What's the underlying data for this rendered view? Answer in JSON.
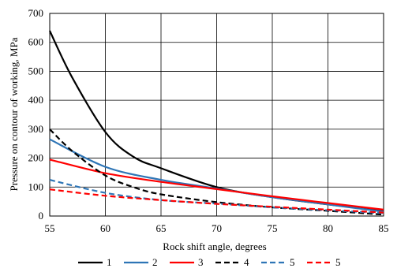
{
  "chart_data": {
    "type": "line",
    "xlabel": "Rock shift angle, degrees",
    "ylabel": "Pressure on contour of working, MPa",
    "xlim": [
      55,
      85
    ],
    "ylim": [
      0,
      700
    ],
    "xticks": [
      55,
      60,
      65,
      70,
      75,
      80,
      85
    ],
    "yticks": [
      0,
      100,
      200,
      300,
      400,
      500,
      600,
      700
    ],
    "grid": true,
    "legend_position": "bottom",
    "series": [
      {
        "name": "1",
        "color": "#000000",
        "dash": "solid",
        "points": [
          [
            55,
            640
          ],
          [
            57,
            480
          ],
          [
            60,
            290
          ],
          [
            62.5,
            205
          ],
          [
            65,
            165
          ],
          [
            70,
            100
          ],
          [
            75,
            65
          ],
          [
            80,
            40
          ],
          [
            85,
            18
          ]
        ]
      },
      {
        "name": "2",
        "color": "#2e75b6",
        "dash": "solid",
        "points": [
          [
            55,
            265
          ],
          [
            60,
            170
          ],
          [
            65,
            125
          ],
          [
            70,
            95
          ],
          [
            75,
            65
          ],
          [
            80,
            40
          ],
          [
            85,
            15
          ]
        ]
      },
      {
        "name": "3",
        "color": "#ff0000",
        "dash": "solid",
        "points": [
          [
            55,
            195
          ],
          [
            60,
            148
          ],
          [
            65,
            118
          ],
          [
            70,
            93
          ],
          [
            75,
            68
          ],
          [
            80,
            45
          ],
          [
            85,
            22
          ]
        ]
      },
      {
        "name": "4",
        "color": "#000000",
        "dash": "dashed",
        "points": [
          [
            55,
            300
          ],
          [
            57,
            225
          ],
          [
            60,
            140
          ],
          [
            62.5,
            100
          ],
          [
            65,
            75
          ],
          [
            70,
            48
          ],
          [
            75,
            30
          ],
          [
            80,
            18
          ],
          [
            85,
            5
          ]
        ]
      },
      {
        "name": "5",
        "color": "#2e75b6",
        "dash": "dashed",
        "points": [
          [
            55,
            125
          ],
          [
            60,
            80
          ],
          [
            65,
            55
          ],
          [
            70,
            43
          ],
          [
            75,
            30
          ],
          [
            80,
            20
          ],
          [
            85,
            10
          ]
        ]
      },
      {
        "name": "5",
        "color": "#ff0000",
        "dash": "dashed",
        "points": [
          [
            55,
            92
          ],
          [
            60,
            70
          ],
          [
            65,
            55
          ],
          [
            70,
            42
          ],
          [
            75,
            32
          ],
          [
            80,
            22
          ],
          [
            85,
            12
          ]
        ]
      }
    ]
  }
}
